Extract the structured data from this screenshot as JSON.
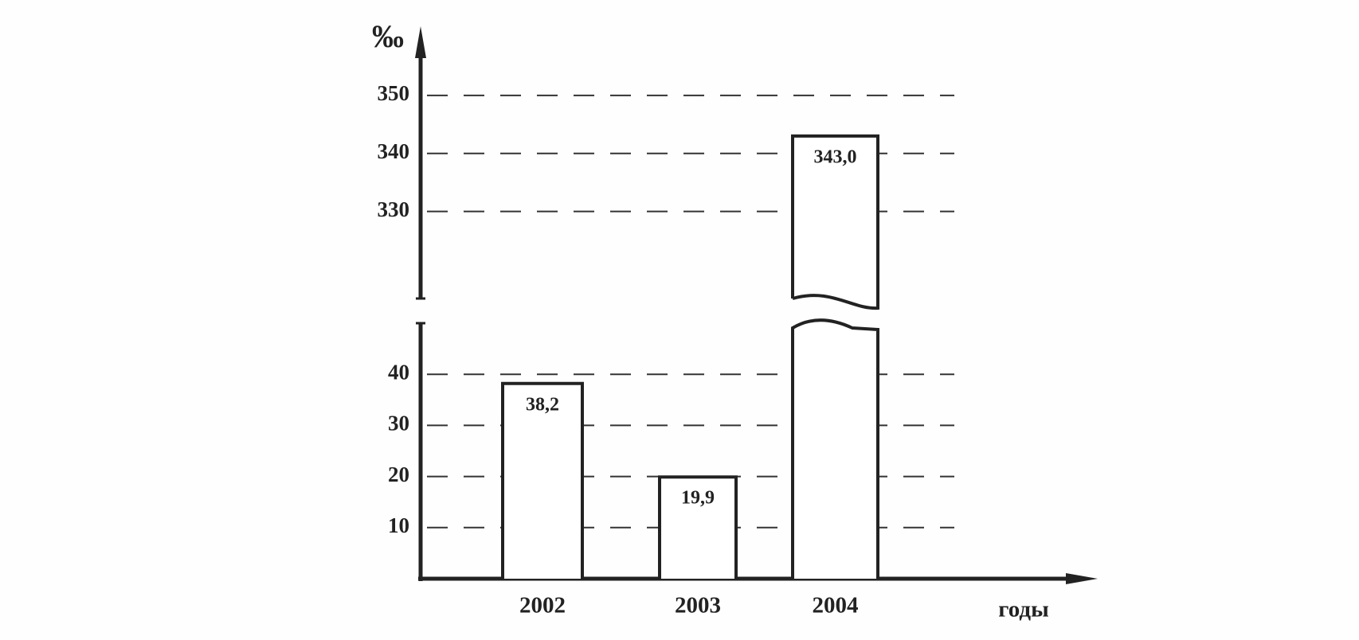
{
  "chart_data": {
    "type": "bar",
    "y_label": "‰",
    "x_label": "годы",
    "categories": [
      "2002",
      "2003",
      "2004"
    ],
    "values": [
      38.2,
      19.9,
      343.0
    ],
    "value_labels": [
      "38,2",
      "19,9",
      "343,0"
    ],
    "color": "#ffffff",
    "segments": [
      {
        "ylim": [
          0,
          50
        ],
        "yticks": [
          10,
          20,
          30,
          40
        ]
      },
      {
        "ylim": [
          315,
          360
        ],
        "yticks": [
          330,
          340,
          350
        ]
      }
    ],
    "grid": true
  }
}
